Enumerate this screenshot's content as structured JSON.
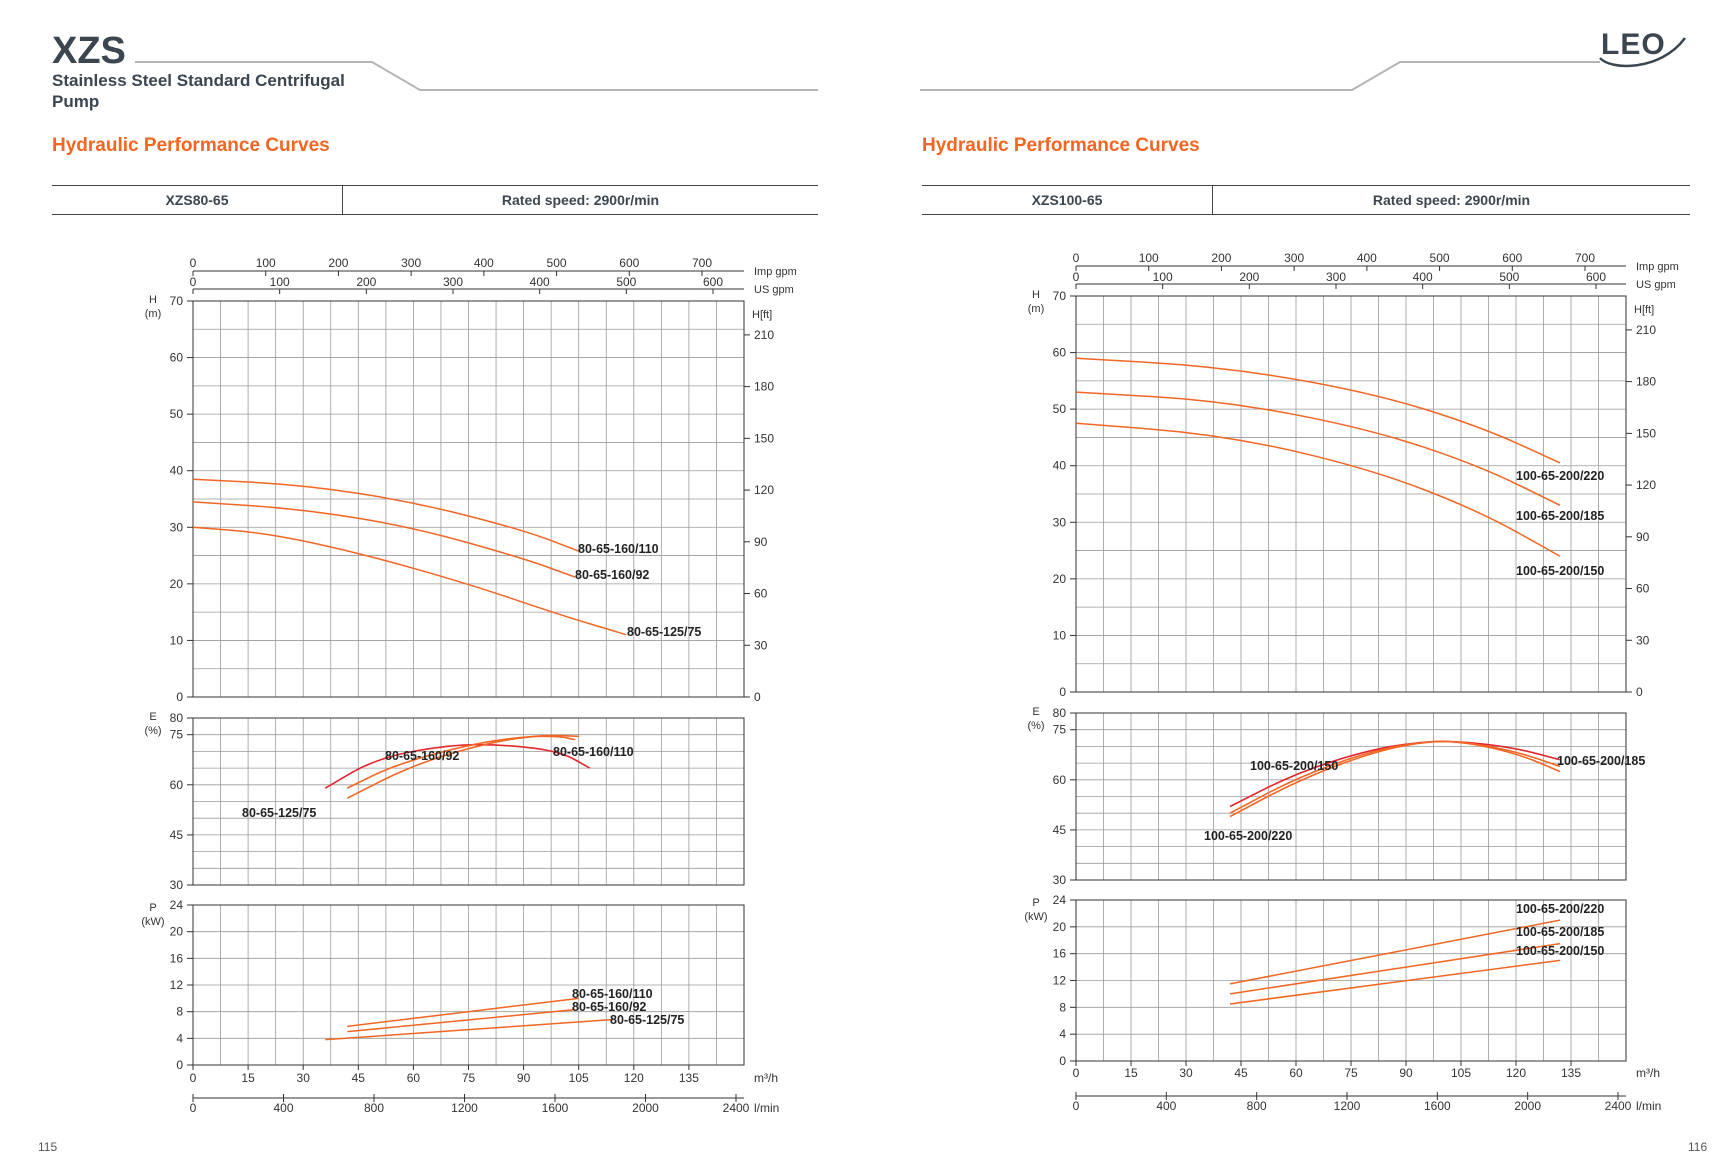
{
  "header": {
    "brand": "XZS",
    "subtitle": "Stainless Steel Standard Centrifugal Pump",
    "logo": "LEO"
  },
  "pages": {
    "left": "115",
    "right": "116"
  },
  "colors": {
    "curve": "#f26522",
    "curve_dark": "#e3262d",
    "grid": "#9a9a9a",
    "accent": "#f26522",
    "brand": "#3b4650"
  },
  "panels": [
    {
      "section_title": "Hydraulic Performance Curves",
      "model": "XZS80-65",
      "speed": "Rated speed: 2900r/min"
    },
    {
      "section_title": "Hydraulic Performance Curves",
      "model": "XZS100-65",
      "speed": "Rated speed: 2900r/min"
    }
  ],
  "chart_data": [
    {
      "type": "line",
      "title": "XZS80-65",
      "axes": {
        "x": {
          "label": "m³/h",
          "range": [
            0,
            150
          ],
          "ticks": [
            0,
            15,
            30,
            45,
            60,
            75,
            90,
            105,
            120,
            135
          ]
        },
        "x_lmin": {
          "label": "l/min",
          "ticks": [
            0,
            400,
            800,
            1200,
            1600,
            2000,
            2400
          ]
        },
        "x_imp": {
          "label": "Imp gpm",
          "ticks": [
            0,
            100,
            200,
            300,
            400,
            500,
            600,
            700
          ]
        },
        "x_us": {
          "label": "US gpm",
          "ticks": [
            0,
            100,
            200,
            300,
            400,
            500,
            600
          ]
        },
        "head": {
          "label": "H",
          "unit": "(m)",
          "range": [
            0,
            70
          ],
          "ticks": [
            0,
            10,
            20,
            30,
            40,
            50,
            60,
            70
          ]
        },
        "head_ft": {
          "label": "H[ft]",
          "ticks": [
            0,
            30,
            60,
            90,
            120,
            150,
            180,
            210
          ]
        },
        "eff": {
          "label": "E",
          "unit": "(%)",
          "range": [
            30,
            80
          ],
          "ticks": [
            30,
            45,
            60,
            75,
            80
          ]
        },
        "power": {
          "label": "P",
          "unit": "(kW)",
          "range": [
            0,
            24
          ],
          "ticks": [
            0,
            4,
            8,
            12,
            16,
            20,
            24
          ]
        }
      },
      "grid": true,
      "head_series": [
        {
          "name": "80-65-160/110",
          "x": [
            0,
            30,
            60,
            90,
            105
          ],
          "y": [
            38.5,
            37.5,
            34.5,
            29.5,
            25.8
          ]
        },
        {
          "name": "80-65-160/92",
          "x": [
            0,
            30,
            60,
            90,
            104
          ],
          "y": [
            34.5,
            33.2,
            30,
            24.5,
            21.2
          ]
        },
        {
          "name": "80-65-125/75",
          "x": [
            0,
            20,
            45,
            75,
            100,
            118
          ],
          "y": [
            30,
            29,
            25.5,
            20,
            14.5,
            11
          ]
        }
      ],
      "eff_series": [
        {
          "name": "80-65-125/75",
          "x": [
            36,
            50,
            70,
            85,
            100,
            108
          ],
          "y": [
            59,
            68,
            72,
            72,
            70,
            65
          ]
        },
        {
          "name": "80-65-160/92",
          "x": [
            42,
            55,
            75,
            90,
            100,
            104
          ],
          "y": [
            59,
            66,
            72,
            74.5,
            74.5,
            73.5
          ]
        },
        {
          "name": "80-65-160/110",
          "x": [
            42,
            60,
            80,
            95,
            105
          ],
          "y": [
            56,
            66,
            72.5,
            75,
            74.5
          ]
        }
      ],
      "power_series": [
        {
          "name": "80-65-160/110",
          "x": [
            42,
            105
          ],
          "y": [
            5.8,
            10
          ]
        },
        {
          "name": "80-65-160/92",
          "x": [
            42,
            104
          ],
          "y": [
            5,
            8.3
          ]
        },
        {
          "name": "80-65-125/75",
          "x": [
            36,
            114
          ],
          "y": [
            3.8,
            6.8
          ]
        }
      ],
      "labels": {
        "head": [
          "80-65-160/110",
          "80-65-160/92",
          "80-65-125/75"
        ],
        "eff": [
          "80-65-160/92",
          "80-65-160/110",
          "80-65-125/75"
        ],
        "power": [
          "80-65-160/110",
          "80-65-160/92",
          "80-65-125/75"
        ]
      }
    },
    {
      "type": "line",
      "title": "XZS100-65",
      "axes": {
        "x": {
          "label": "m³/h",
          "range": [
            0,
            150
          ],
          "ticks": [
            0,
            15,
            30,
            45,
            60,
            75,
            90,
            105,
            120,
            135
          ]
        },
        "x_lmin": {
          "label": "l/min",
          "ticks": [
            0,
            400,
            800,
            1200,
            1600,
            2000,
            2400
          ]
        },
        "x_imp": {
          "label": "Imp gpm",
          "ticks": [
            0,
            100,
            200,
            300,
            400,
            500,
            600,
            700
          ]
        },
        "x_us": {
          "label": "US gpm",
          "ticks": [
            0,
            100,
            200,
            300,
            400,
            500,
            600
          ]
        },
        "head": {
          "label": "H",
          "unit": "(m)",
          "range": [
            0,
            70
          ],
          "ticks": [
            0,
            10,
            20,
            30,
            40,
            50,
            60,
            70
          ]
        },
        "head_ft": {
          "label": "H[ft]",
          "ticks": [
            0,
            30,
            60,
            90,
            120,
            150,
            180,
            210
          ]
        },
        "eff": {
          "label": "E",
          "unit": "(%)",
          "range": [
            30,
            80
          ],
          "ticks": [
            30,
            45,
            60,
            75,
            80
          ]
        },
        "power": {
          "label": "P",
          "unit": "(kW)",
          "range": [
            0,
            24
          ],
          "ticks": [
            0,
            4,
            8,
            12,
            16,
            20,
            24
          ]
        }
      },
      "grid": true,
      "head_series": [
        {
          "name": "100-65-200/220",
          "x": [
            0,
            40,
            80,
            110,
            132
          ],
          "y": [
            59,
            57.5,
            53,
            47,
            40.5
          ]
        },
        {
          "name": "100-65-200/185",
          "x": [
            0,
            40,
            80,
            110,
            132
          ],
          "y": [
            53,
            51.5,
            46.5,
            40,
            33
          ]
        },
        {
          "name": "100-65-200/150",
          "x": [
            0,
            40,
            80,
            110,
            132
          ],
          "y": [
            47.5,
            45.5,
            39.5,
            32,
            24
          ]
        }
      ],
      "eff_series": [
        {
          "name": "100-65-200/150",
          "x": [
            42,
            60,
            80,
            95,
            105,
            120,
            132
          ],
          "y": [
            52,
            62,
            69,
            71.5,
            71.5,
            69.5,
            66
          ]
        },
        {
          "name": "100-65-200/185",
          "x": [
            42,
            60,
            80,
            95,
            105,
            120,
            132
          ],
          "y": [
            50,
            60.5,
            68.5,
            71.5,
            71.5,
            68.5,
            64
          ]
        },
        {
          "name": "100-65-200/220",
          "x": [
            42,
            60,
            80,
            95,
            105,
            120,
            132
          ],
          "y": [
            49,
            59.5,
            68,
            71.5,
            71.5,
            68,
            62.5
          ]
        }
      ],
      "power_series": [
        {
          "name": "100-65-200/220",
          "x": [
            42,
            132
          ],
          "y": [
            11.5,
            21
          ]
        },
        {
          "name": "100-65-200/185",
          "x": [
            42,
            132
          ],
          "y": [
            10,
            17.5
          ]
        },
        {
          "name": "100-65-200/150",
          "x": [
            42,
            132
          ],
          "y": [
            8.5,
            15
          ]
        }
      ],
      "labels": {
        "head": [
          "100-65-200/220",
          "100-65-200/185",
          "100-65-200/150"
        ],
        "eff": [
          "100-65-200/150",
          "100-65-200/185",
          "100-65-200/220"
        ],
        "power": [
          "100-65-200/220",
          "100-65-200/185",
          "100-65-200/150"
        ]
      }
    }
  ]
}
